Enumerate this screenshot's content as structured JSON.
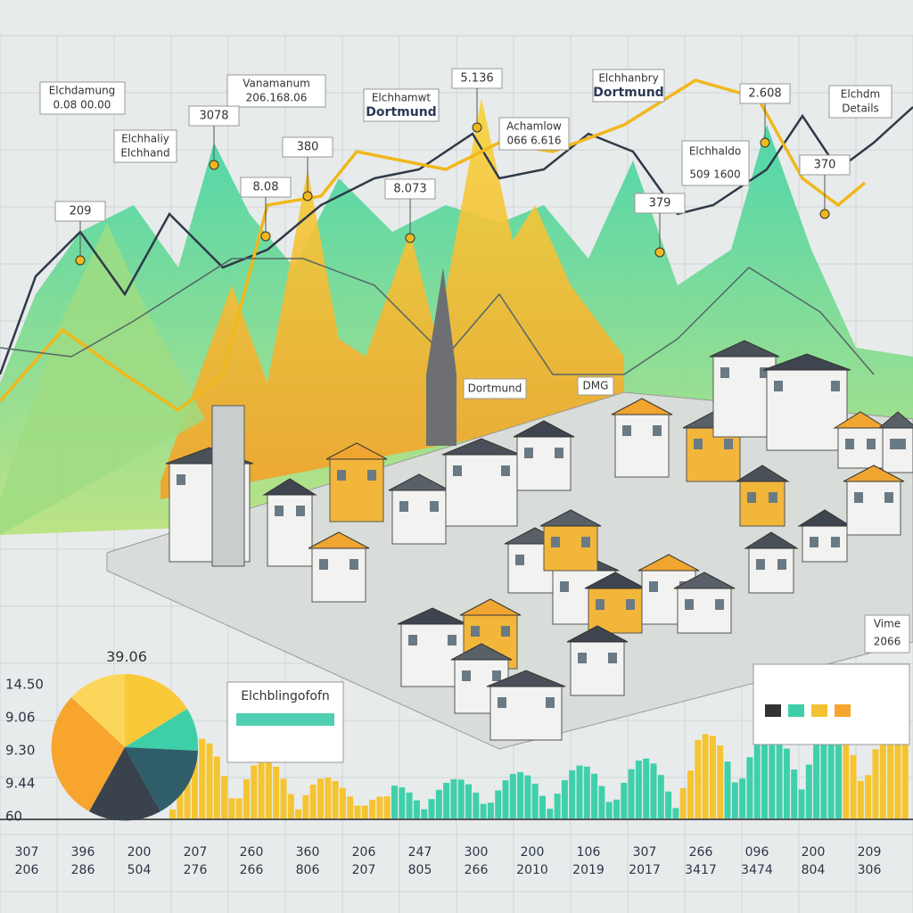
{
  "callouts": [
    {
      "title": "Elchdamung",
      "value": "0.08 00.00"
    },
    {
      "title": "Vanamanum",
      "value": "206.168.06"
    },
    {
      "title": "Elchhamwt",
      "value": "Dortmund"
    },
    {
      "title": "Elchhanbry",
      "value": "Dortmund"
    },
    {
      "title": "Elchdm",
      "value": "Details"
    },
    {
      "title": "Achamlow",
      "value": "066 6.616"
    },
    {
      "title": "Elchhaldo",
      "value": "509 1600"
    },
    {
      "title": "Elchhaliy",
      "value": "Elchhand"
    }
  ],
  "markers": [
    "3078",
    "5.136",
    "2.608",
    "209",
    "380",
    "8.08",
    "8.073",
    "379",
    "370"
  ],
  "pie": {
    "label": "39.06",
    "legend_title": "Elchblingofofn"
  },
  "y_axis": [
    "14.50",
    "9.06",
    "9.30",
    "9.44",
    "60"
  ],
  "x_axis": {
    "top": [
      "307",
      "396",
      "200",
      "207",
      "260",
      "360",
      "206",
      "247",
      "300",
      "200",
      "106",
      "307",
      "266",
      "096",
      "200",
      "209"
    ],
    "bottom": [
      "206",
      "286",
      "504",
      "276",
      "266",
      "806",
      "207",
      "805",
      "266",
      "2010",
      "2019",
      "2017",
      "3417",
      "3474",
      "804",
      "306"
    ]
  },
  "version": [
    "Vime",
    "2066"
  ],
  "signs": [
    "Dortmund",
    "DMG"
  ]
}
